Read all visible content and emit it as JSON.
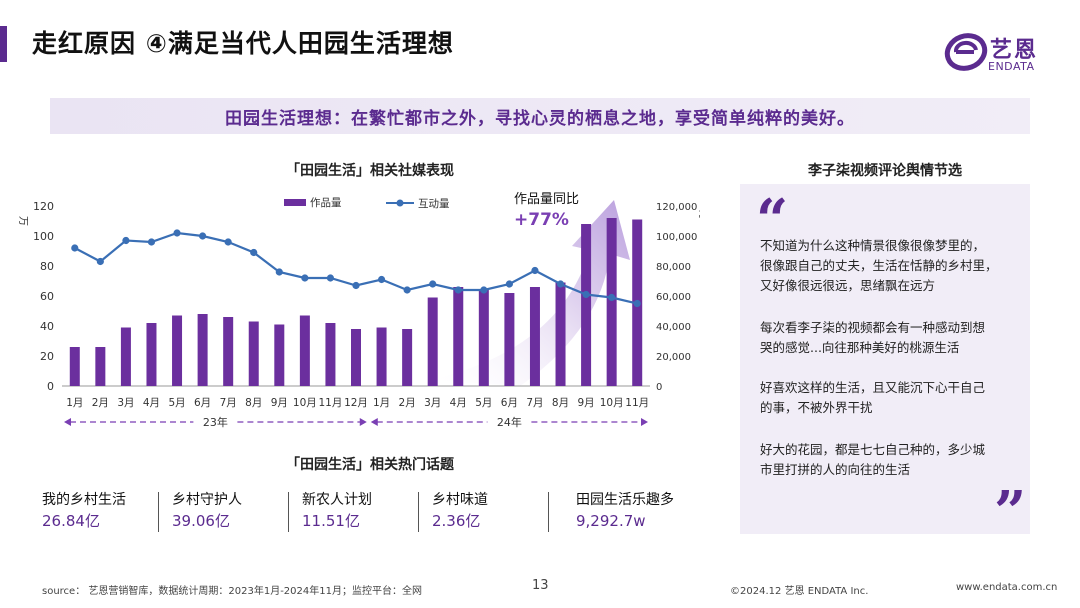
{
  "header": {
    "title": "走红原因 ④满足当代人田园生活理想",
    "logo_cn": "艺恩",
    "logo_en": "ENDATA"
  },
  "banner": {
    "text": "田园生活理想：在繁忙都市之外，寻找心灵的栖息之地，享受简单纯粹的美好。"
  },
  "chart_section": {
    "title": "「田园生活」相关社媒表现",
    "yoy_label": "作品量同比",
    "yoy_value": "+77%"
  },
  "chart_data": {
    "type": "bar",
    "categories": [
      "1月",
      "2月",
      "3月",
      "4月",
      "5月",
      "6月",
      "7月",
      "8月",
      "9月",
      "10月",
      "11月",
      "12月",
      "1月",
      "2月",
      "3月",
      "4月",
      "5月",
      "6月",
      "7月",
      "8月",
      "9月",
      "10月",
      "11月"
    ],
    "year_groups": [
      {
        "label": "23年",
        "count": 12
      },
      {
        "label": "24年",
        "count": 11
      }
    ],
    "series": [
      {
        "name": "作品量",
        "type": "bar",
        "axis": "left",
        "color": "#6b2f9e",
        "values": [
          26,
          26,
          39,
          42,
          47,
          48,
          46,
          43,
          41,
          47,
          42,
          38,
          39,
          38,
          59,
          66,
          64,
          62,
          66,
          69,
          108,
          112,
          111
        ]
      },
      {
        "name": "互动量",
        "type": "line",
        "axis": "right",
        "color": "#3a6fb5",
        "values": [
          92000,
          83000,
          97000,
          96000,
          102000,
          100000,
          96000,
          89000,
          76000,
          72000,
          72000,
          67000,
          71000,
          64000,
          68000,
          64000,
          64000,
          68000,
          77000,
          68000,
          61000,
          59000,
          55000
        ]
      }
    ],
    "ylim_left": [
      0,
      120
    ],
    "yticks_left": [
      0,
      20,
      40,
      60,
      80,
      100,
      120
    ],
    "ylabel_left": "万",
    "ylim_right": [
      0,
      120000
    ],
    "yticks_right": [
      "0",
      "20,000",
      "40,000",
      "60,000",
      "80,000",
      "100,000",
      "120,000"
    ],
    "ylabel_right": "万",
    "legend_position": "top",
    "grid": false
  },
  "topics_section": {
    "title": "「田园生活」相关热门话题",
    "items": [
      {
        "name": "我的乡村生活",
        "value": "26.84亿"
      },
      {
        "name": "乡村守护人",
        "value": "39.06亿"
      },
      {
        "name": "新农人计划",
        "value": "11.51亿"
      },
      {
        "name": "乡村味道",
        "value": "2.36亿"
      },
      {
        "name": "田园生活乐趣多",
        "value": "9,292.7w"
      }
    ]
  },
  "comments_section": {
    "title": "李子柒视频评论舆情节选",
    "quote_open": "“",
    "quote_close": "”",
    "items": [
      {
        "line1": "不知道为什么这种情景很像很像梦里的，",
        "line2": "很像跟自己的丈夫，生活在恬静的乡村里，",
        "line3": "又好像很远很远，思绪飘在远方"
      },
      {
        "line1": "每次看李子柒的视频都会有一种感动到想",
        "line2": "哭的感觉...向往那种美好的桃源生活",
        "line3": ""
      },
      {
        "line1": "好喜欢这样的生活，且又能沉下心干自己",
        "line2": "的事，不被外界干扰",
        "line3": ""
      },
      {
        "line1": "好大的花园，都是七七自己种的，多少城",
        "line2": "市里打拼的人的向往的生活",
        "line3": ""
      }
    ]
  },
  "footer": {
    "source": "source： 艺恩营销智库，数据统计周期：2023年1月-2024年11月；监控平台：全网",
    "page": "13",
    "copyright": "©2024.12 艺恩 ENDATA Inc.",
    "url": "www.endata.com.cn"
  },
  "colors": {
    "brand": "#5b2b8f",
    "bar": "#6b2f9e",
    "line": "#3a6fb5",
    "panel": "#f1edf7"
  }
}
